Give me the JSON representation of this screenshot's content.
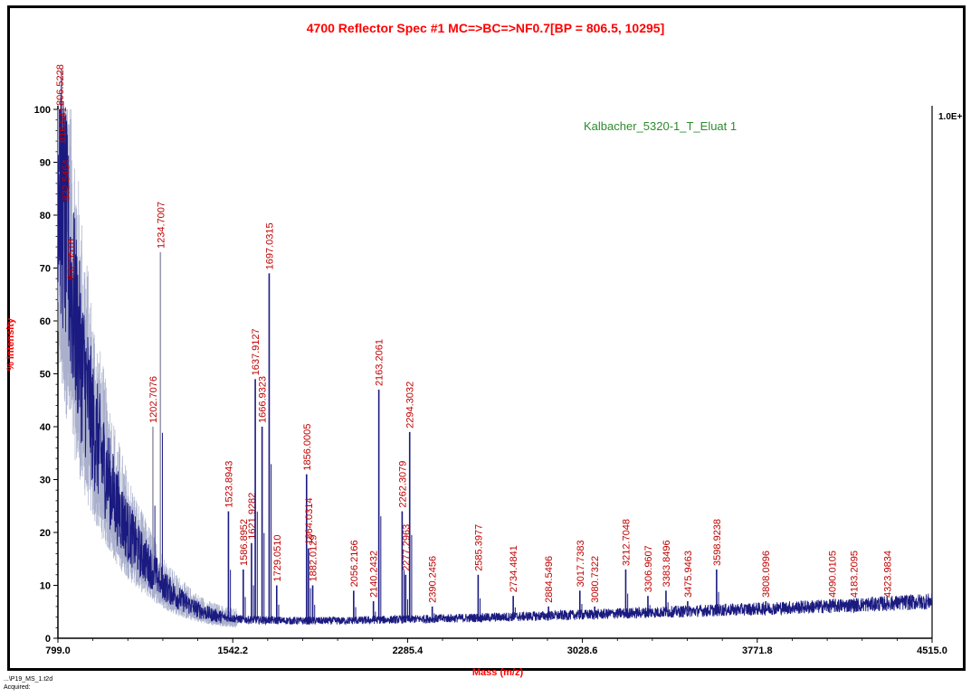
{
  "chart_data": {
    "type": "line",
    "title": "4700 Reflector Spec #1 MC=>BC=>NF0.7[BP = 806.5, 10295]",
    "xlabel": "Mass (m/z)",
    "ylabel": "% Intensity",
    "xlim": [
      799.0,
      4515.0
    ],
    "ylim": [
      0,
      100
    ],
    "x_ticks": [
      "799.0",
      "1542.2",
      "2285.4",
      "3028.6",
      "3771.8",
      "4515.0"
    ],
    "y_ticks": [
      "0",
      "10",
      "20",
      "30",
      "40",
      "50",
      "60",
      "70",
      "80",
      "90",
      "100"
    ],
    "legend": "Kalbacher_5320-1_T_Eluat 1",
    "max_intensity_label": "1.0E+",
    "line_color": "#1a1a80",
    "label_color": "#c00000",
    "baseline": [
      {
        "x": 799,
        "y": 95
      },
      {
        "x": 810,
        "y": 85
      },
      {
        "x": 830,
        "y": 78
      },
      {
        "x": 860,
        "y": 65
      },
      {
        "x": 900,
        "y": 52
      },
      {
        "x": 950,
        "y": 40
      },
      {
        "x": 1000,
        "y": 32
      },
      {
        "x": 1050,
        "y": 25
      },
      {
        "x": 1100,
        "y": 20
      },
      {
        "x": 1150,
        "y": 16
      },
      {
        "x": 1200,
        "y": 13
      },
      {
        "x": 1250,
        "y": 10
      },
      {
        "x": 1300,
        "y": 8
      },
      {
        "x": 1350,
        "y": 6.5
      },
      {
        "x": 1400,
        "y": 5.3
      },
      {
        "x": 1450,
        "y": 4.5
      },
      {
        "x": 1500,
        "y": 4
      },
      {
        "x": 1600,
        "y": 3.5
      },
      {
        "x": 1800,
        "y": 3.3
      },
      {
        "x": 2000,
        "y": 3.3
      },
      {
        "x": 2300,
        "y": 3.6
      },
      {
        "x": 2600,
        "y": 3.9
      },
      {
        "x": 3000,
        "y": 4.4
      },
      {
        "x": 3400,
        "y": 5.0
      },
      {
        "x": 3800,
        "y": 5.6
      },
      {
        "x": 4200,
        "y": 6.3
      },
      {
        "x": 4515,
        "y": 7.0
      }
    ],
    "peaks": [
      {
        "x": 806.5228,
        "y": 100,
        "label": "806.5228"
      },
      {
        "x": 818.541,
        "y": 93,
        "label": "818.541"
      },
      {
        "x": 832.5464,
        "y": 82,
        "label": "832.5464"
      },
      {
        "x": 852.5518,
        "y": 67,
        "label": "852.5518"
      },
      {
        "x": 1202.7076,
        "y": 40,
        "label": "1202.7076"
      },
      {
        "x": 1234.7007,
        "y": 73,
        "label": "1234.7007"
      },
      {
        "x": 1523.8943,
        "y": 24,
        "label": "1523.8943"
      },
      {
        "x": 1586.8952,
        "y": 13,
        "label": "1586.8952"
      },
      {
        "x": 1621.9282,
        "y": 18,
        "label": "1621.9282"
      },
      {
        "x": 1637.9127,
        "y": 49,
        "label": "1637.9127"
      },
      {
        "x": 1666.9323,
        "y": 40,
        "label": "1666.9323"
      },
      {
        "x": 1697.0315,
        "y": 69,
        "label": "1697.0315"
      },
      {
        "x": 1729.051,
        "y": 10,
        "label": "1729.0510"
      },
      {
        "x": 1856.0005,
        "y": 31,
        "label": "1856.0005"
      },
      {
        "x": 1864.0314,
        "y": 17,
        "label": "1864.0314"
      },
      {
        "x": 1882.0129,
        "y": 10,
        "label": "1882.0129"
      },
      {
        "x": 2056.2166,
        "y": 9,
        "label": "2056.2166"
      },
      {
        "x": 2140.2432,
        "y": 7,
        "label": "2140.2432"
      },
      {
        "x": 2163.2061,
        "y": 47,
        "label": "2163.2061"
      },
      {
        "x": 2262.3079,
        "y": 24,
        "label": "2262.3079"
      },
      {
        "x": 2277.2963,
        "y": 12,
        "label": "2277.2963"
      },
      {
        "x": 2294.3032,
        "y": 39,
        "label": "2294.3032"
      },
      {
        "x": 2390.2456,
        "y": 6,
        "label": "2390.2456"
      },
      {
        "x": 2585.3977,
        "y": 12,
        "label": "2585.3977"
      },
      {
        "x": 2734.4841,
        "y": 8,
        "label": "2734.4841"
      },
      {
        "x": 2884.5496,
        "y": 6,
        "label": "2884.5496"
      },
      {
        "x": 3017.7383,
        "y": 9,
        "label": "3017.7383"
      },
      {
        "x": 3080.7322,
        "y": 6,
        "label": "3080.7322"
      },
      {
        "x": 3212.7048,
        "y": 13,
        "label": "3212.7048"
      },
      {
        "x": 3306.9607,
        "y": 8,
        "label": "3306.9607"
      },
      {
        "x": 3383.8496,
        "y": 9,
        "label": "3383.8496"
      },
      {
        "x": 3475.9463,
        "y": 7,
        "label": "3475.9463"
      },
      {
        "x": 3598.9238,
        "y": 13,
        "label": "3598.9238"
      },
      {
        "x": 3808.0996,
        "y": 7,
        "label": "3808.0996"
      },
      {
        "x": 4090.0105,
        "y": 7,
        "label": "4090.0105"
      },
      {
        "x": 4183.2095,
        "y": 7,
        "label": "4183.2095"
      },
      {
        "x": 4323.9834,
        "y": 7,
        "label": "4323.9834"
      }
    ]
  },
  "footer": {
    "file": "...\\P19_MS_1.t2d",
    "acquired": "Acquired:"
  }
}
